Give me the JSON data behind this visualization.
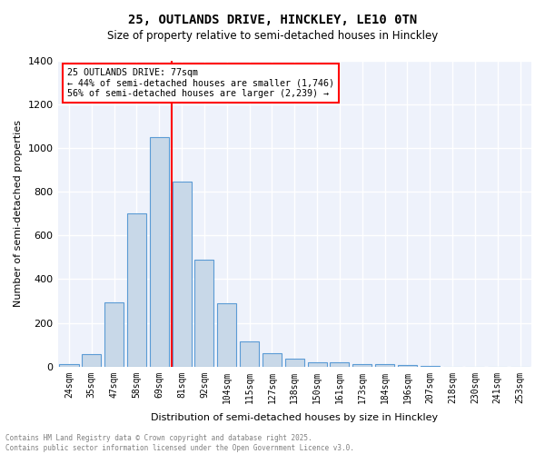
{
  "title_line1": "25, OUTLANDS DRIVE, HINCKLEY, LE10 0TN",
  "title_line2": "Size of property relative to semi-detached houses in Hinckley",
  "xlabel": "Distribution of semi-detached houses by size in Hinckley",
  "ylabel": "Number of semi-detached properties",
  "bar_color": "#c8d8e8",
  "bar_edge_color": "#5b9bd5",
  "bg_color": "#eef2fb",
  "grid_color": "white",
  "categories": [
    "24sqm",
    "35sqm",
    "47sqm",
    "58sqm",
    "69sqm",
    "81sqm",
    "92sqm",
    "104sqm",
    "115sqm",
    "127sqm",
    "138sqm",
    "150sqm",
    "161sqm",
    "173sqm",
    "184sqm",
    "196sqm",
    "207sqm",
    "218sqm",
    "230sqm",
    "241sqm",
    "253sqm"
  ],
  "values": [
    10,
    57,
    295,
    700,
    1050,
    845,
    490,
    290,
    115,
    63,
    35,
    20,
    18,
    13,
    10,
    8,
    5,
    0,
    0,
    0,
    0
  ],
  "vline_index": 4.57,
  "vline_color": "red",
  "annotation_title": "25 OUTLANDS DRIVE: 77sqm",
  "annotation_line2": "← 44% of semi-detached houses are smaller (1,746)",
  "annotation_line3": "56% of semi-detached houses are larger (2,239) →",
  "ylim": [
    0,
    1400
  ],
  "yticks": [
    0,
    200,
    400,
    600,
    800,
    1000,
    1200,
    1400
  ],
  "footer_line1": "Contains HM Land Registry data © Crown copyright and database right 2025.",
  "footer_line2": "Contains public sector information licensed under the Open Government Licence v3.0."
}
